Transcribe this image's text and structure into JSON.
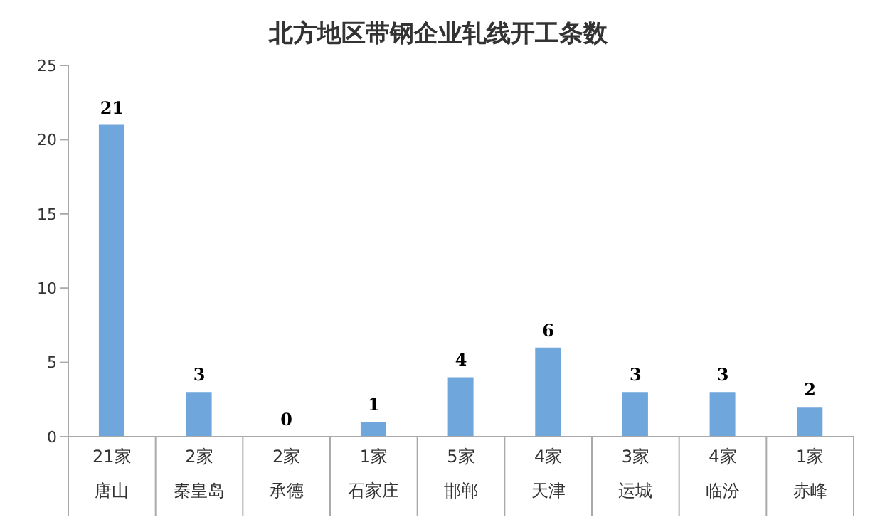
{
  "chart_data": {
    "type": "bar",
    "title": "北方地区带钢企业轧线开工条数",
    "categories": [
      "21家唐山",
      "2家秦皇岛",
      "2家承德",
      "1家石家庄",
      "5家邯郸",
      "4家天津",
      "3家运城",
      "4家临汾",
      "1家赤峰"
    ],
    "values": [
      21,
      3,
      0,
      1,
      4,
      6,
      3,
      3,
      2
    ],
    "color": "#6fa6dc",
    "ylim": [
      0,
      25
    ],
    "yticks": [
      0,
      5,
      10,
      15,
      20,
      25
    ],
    "grid": false,
    "data_labels": true
  }
}
